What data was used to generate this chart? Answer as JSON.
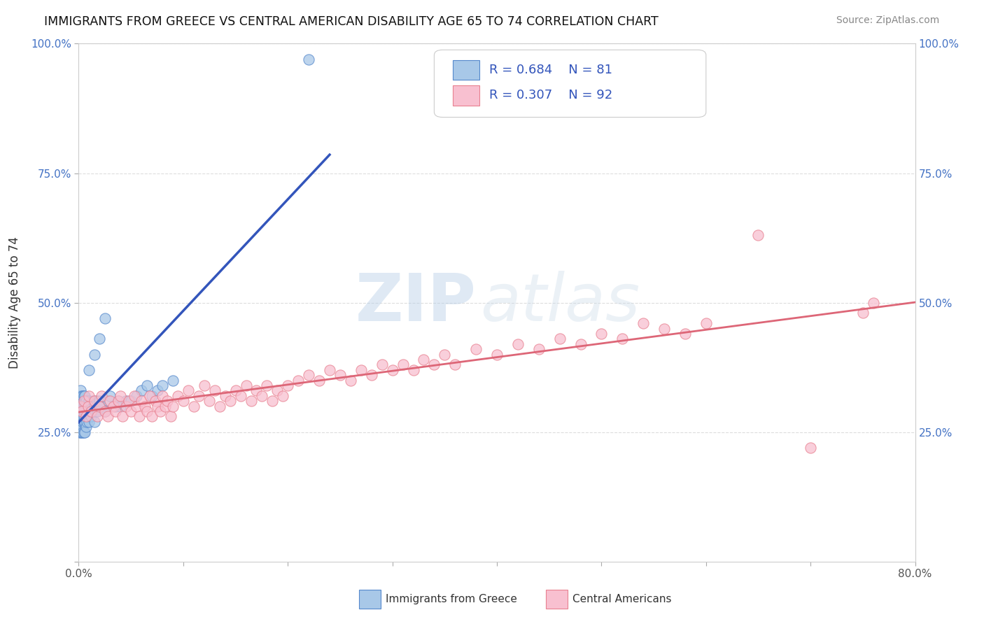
{
  "title": "IMMIGRANTS FROM GREECE VS CENTRAL AMERICAN DISABILITY AGE 65 TO 74 CORRELATION CHART",
  "source": "Source: ZipAtlas.com",
  "ylabel": "Disability Age 65 to 74",
  "xlim": [
    0.0,
    0.8
  ],
  "ylim": [
    0.0,
    1.0
  ],
  "xticks": [
    0.0,
    0.1,
    0.2,
    0.3,
    0.4,
    0.5,
    0.6,
    0.7,
    0.8
  ],
  "xticklabels": [
    "0.0%",
    "",
    "",
    "",
    "",
    "",
    "",
    "",
    "80.0%"
  ],
  "yticks": [
    0.0,
    0.25,
    0.5,
    0.75,
    1.0
  ],
  "yticklabels": [
    "",
    "25.0%",
    "50.0%",
    "75.0%",
    "100.0%"
  ],
  "greece_color": "#a8c8e8",
  "greece_edge": "#5588cc",
  "central_color": "#f8c0d0",
  "central_edge": "#e88090",
  "greece_line_color": "#3355bb",
  "central_line_color": "#dd6677",
  "R_greece": 0.684,
  "N_greece": 81,
  "R_central": 0.307,
  "N_central": 92,
  "legend_text_color": "#3355bb",
  "background_color": "#ffffff",
  "grid_color": "#dddddd",
  "greece_scatter_x": [
    0.001,
    0.001,
    0.001,
    0.001,
    0.001,
    0.002,
    0.002,
    0.002,
    0.002,
    0.002,
    0.002,
    0.002,
    0.003,
    0.003,
    0.003,
    0.003,
    0.003,
    0.003,
    0.003,
    0.003,
    0.003,
    0.004,
    0.004,
    0.004,
    0.004,
    0.004,
    0.004,
    0.005,
    0.005,
    0.005,
    0.005,
    0.005,
    0.005,
    0.006,
    0.006,
    0.006,
    0.006,
    0.006,
    0.007,
    0.007,
    0.007,
    0.007,
    0.008,
    0.008,
    0.008,
    0.009,
    0.009,
    0.01,
    0.01,
    0.01,
    0.011,
    0.012,
    0.013,
    0.014,
    0.015,
    0.015,
    0.016,
    0.017,
    0.018,
    0.02,
    0.022,
    0.025,
    0.028,
    0.03,
    0.035,
    0.038,
    0.04,
    0.045,
    0.05,
    0.055,
    0.06,
    0.065,
    0.07,
    0.075,
    0.08,
    0.09,
    0.01,
    0.015,
    0.02,
    0.025,
    0.22
  ],
  "greece_scatter_y": [
    0.28,
    0.3,
    0.25,
    0.32,
    0.27,
    0.29,
    0.31,
    0.26,
    0.33,
    0.28,
    0.3,
    0.25,
    0.28,
    0.3,
    0.32,
    0.27,
    0.25,
    0.31,
    0.29,
    0.26,
    0.28,
    0.3,
    0.27,
    0.25,
    0.32,
    0.29,
    0.28,
    0.3,
    0.27,
    0.25,
    0.32,
    0.29,
    0.28,
    0.3,
    0.27,
    0.25,
    0.32,
    0.29,
    0.3,
    0.28,
    0.26,
    0.31,
    0.3,
    0.27,
    0.29,
    0.28,
    0.3,
    0.29,
    0.27,
    0.31,
    0.3,
    0.28,
    0.29,
    0.31,
    0.3,
    0.27,
    0.29,
    0.31,
    0.29,
    0.31,
    0.3,
    0.29,
    0.31,
    0.32,
    0.3,
    0.31,
    0.3,
    0.31,
    0.31,
    0.32,
    0.33,
    0.34,
    0.32,
    0.33,
    0.34,
    0.35,
    0.37,
    0.4,
    0.43,
    0.47,
    0.97
  ],
  "central_scatter_x": [
    0.002,
    0.003,
    0.005,
    0.007,
    0.009,
    0.01,
    0.012,
    0.015,
    0.018,
    0.02,
    0.022,
    0.025,
    0.028,
    0.03,
    0.033,
    0.035,
    0.038,
    0.04,
    0.042,
    0.045,
    0.048,
    0.05,
    0.053,
    0.055,
    0.058,
    0.06,
    0.063,
    0.065,
    0.068,
    0.07,
    0.073,
    0.075,
    0.078,
    0.08,
    0.083,
    0.085,
    0.088,
    0.09,
    0.095,
    0.1,
    0.105,
    0.11,
    0.115,
    0.12,
    0.125,
    0.13,
    0.135,
    0.14,
    0.145,
    0.15,
    0.155,
    0.16,
    0.165,
    0.17,
    0.175,
    0.18,
    0.185,
    0.19,
    0.195,
    0.2,
    0.21,
    0.22,
    0.23,
    0.24,
    0.25,
    0.26,
    0.27,
    0.28,
    0.29,
    0.3,
    0.31,
    0.32,
    0.33,
    0.34,
    0.35,
    0.36,
    0.38,
    0.4,
    0.42,
    0.44,
    0.46,
    0.48,
    0.5,
    0.52,
    0.54,
    0.56,
    0.58,
    0.6,
    0.65,
    0.7,
    0.75,
    0.76
  ],
  "central_scatter_y": [
    0.3,
    0.29,
    0.31,
    0.28,
    0.3,
    0.32,
    0.29,
    0.31,
    0.28,
    0.3,
    0.32,
    0.29,
    0.28,
    0.31,
    0.3,
    0.29,
    0.31,
    0.32,
    0.28,
    0.3,
    0.31,
    0.29,
    0.32,
    0.3,
    0.28,
    0.31,
    0.3,
    0.29,
    0.32,
    0.28,
    0.31,
    0.3,
    0.29,
    0.32,
    0.3,
    0.31,
    0.28,
    0.3,
    0.32,
    0.31,
    0.33,
    0.3,
    0.32,
    0.34,
    0.31,
    0.33,
    0.3,
    0.32,
    0.31,
    0.33,
    0.32,
    0.34,
    0.31,
    0.33,
    0.32,
    0.34,
    0.31,
    0.33,
    0.32,
    0.34,
    0.35,
    0.36,
    0.35,
    0.37,
    0.36,
    0.35,
    0.37,
    0.36,
    0.38,
    0.37,
    0.38,
    0.37,
    0.39,
    0.38,
    0.4,
    0.38,
    0.41,
    0.4,
    0.42,
    0.41,
    0.43,
    0.42,
    0.44,
    0.43,
    0.46,
    0.45,
    0.44,
    0.46,
    0.63,
    0.22,
    0.48,
    0.5
  ],
  "watermark_zip": "ZIP",
  "watermark_atlas": "atlas"
}
